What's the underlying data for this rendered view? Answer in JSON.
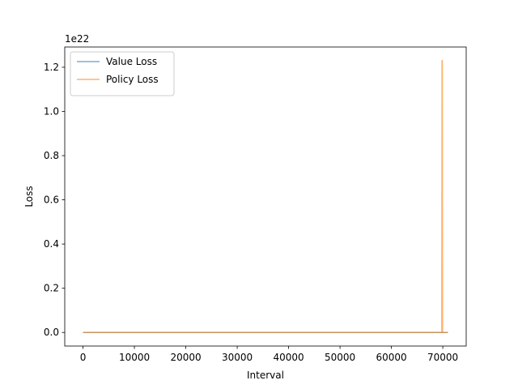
{
  "chart_data": {
    "type": "line",
    "xlabel": "Interval",
    "ylabel": "Loss",
    "y_multiplier_label": "1e22",
    "xlim": [
      -3550,
      74550
    ],
    "ylim": [
      -0.0615,
      1.2915
    ],
    "xticks": [
      0,
      10000,
      20000,
      30000,
      40000,
      50000,
      60000,
      70000
    ],
    "xtick_labels": [
      "0",
      "10000",
      "20000",
      "30000",
      "40000",
      "50000",
      "60000",
      "70000"
    ],
    "yticks": [
      0.0,
      0.2,
      0.4,
      0.6,
      0.8,
      1.0,
      1.2
    ],
    "ytick_labels": [
      "0.0",
      "0.2",
      "0.4",
      "0.6",
      "0.8",
      "1.0",
      "1.2"
    ],
    "grid": false,
    "legend_position": "top-left",
    "series": [
      {
        "name": "Value Loss",
        "color": "#1f77b4",
        "x": [
          0,
          70000,
          71000
        ],
        "y": [
          0.0,
          0.0,
          0.0
        ]
      },
      {
        "name": "Policy Loss",
        "color": "#ff7f0e",
        "x": [
          0,
          69800,
          69850,
          69900,
          69950,
          71000
        ],
        "y": [
          0.0,
          0.0,
          1.23,
          1.23,
          0.0,
          0.0
        ]
      }
    ]
  }
}
